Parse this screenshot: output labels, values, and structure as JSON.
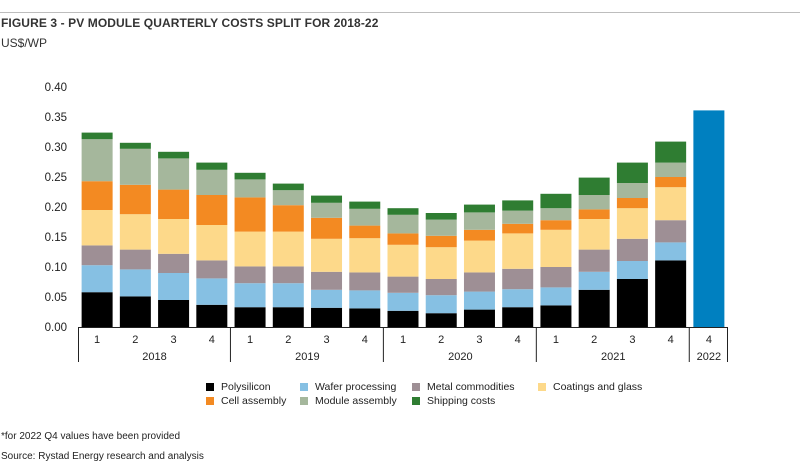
{
  "title": "FIGURE 3 - PV MODULE QUARTERLY COSTS SPLIT FOR 2018-22",
  "unit": "US$/WP",
  "note": "*for 2022 Q4 values have been provided",
  "source": "Source: Rystad Energy research and analysis",
  "chart_data": {
    "type": "bar",
    "stacked": true,
    "title": "FIGURE 3 - PV MODULE QUARTERLY COSTS SPLIT FOR 2018-22",
    "ylabel": "US$/WP",
    "ylim": [
      0,
      0.4
    ],
    "yticks": [
      "0.00",
      "0.05",
      "0.10",
      "0.15",
      "0.20",
      "0.25",
      "0.30",
      "0.35",
      "0.40"
    ],
    "quarters": [
      "1",
      "2",
      "3",
      "4",
      "1",
      "2",
      "3",
      "4",
      "1",
      "2",
      "3",
      "4",
      "1",
      "2",
      "3",
      "4",
      "4"
    ],
    "years": [
      {
        "label": "2018",
        "count": 4
      },
      {
        "label": "2019",
        "count": 4
      },
      {
        "label": "2020",
        "count": 4
      },
      {
        "label": "2021",
        "count": 4
      },
      {
        "label": "2022",
        "count": 1
      }
    ],
    "series": [
      {
        "name": "Polysilicon",
        "color": "#000000",
        "values": [
          0.058,
          0.051,
          0.045,
          0.037,
          0.033,
          0.033,
          0.032,
          0.031,
          0.027,
          0.023,
          0.029,
          0.033,
          0.036,
          0.062,
          0.08,
          0.111,
          null
        ]
      },
      {
        "name": "Wafer processing",
        "color": "#86c0e3",
        "values": [
          0.045,
          0.045,
          0.045,
          0.044,
          0.04,
          0.04,
          0.03,
          0.03,
          0.03,
          0.03,
          0.03,
          0.03,
          0.03,
          0.03,
          0.03,
          0.03,
          null
        ]
      },
      {
        "name": "Metal commodities",
        "color": "#9e8f95",
        "values": [
          0.033,
          0.033,
          0.032,
          0.03,
          0.028,
          0.028,
          0.03,
          0.03,
          0.027,
          0.027,
          0.032,
          0.034,
          0.034,
          0.037,
          0.037,
          0.037,
          null
        ]
      },
      {
        "name": "Coatings and glass",
        "color": "#fdd98a",
        "values": [
          0.059,
          0.059,
          0.058,
          0.059,
          0.058,
          0.058,
          0.055,
          0.057,
          0.053,
          0.053,
          0.053,
          0.059,
          0.062,
          0.051,
          0.051,
          0.055,
          null
        ]
      },
      {
        "name": "Cell assembly",
        "color": "#f38a22",
        "values": [
          0.048,
          0.049,
          0.049,
          0.05,
          0.057,
          0.044,
          0.035,
          0.021,
          0.019,
          0.019,
          0.018,
          0.016,
          0.016,
          0.016,
          0.017,
          0.017,
          null
        ]
      },
      {
        "name": "Module assembly",
        "color": "#a5b79c",
        "values": [
          0.07,
          0.06,
          0.052,
          0.042,
          0.03,
          0.025,
          0.025,
          0.028,
          0.031,
          0.027,
          0.029,
          0.022,
          0.02,
          0.024,
          0.025,
          0.024,
          null
        ]
      },
      {
        "name": "Shipping costs",
        "color": "#2f7d32",
        "values": [
          0.011,
          0.01,
          0.011,
          0.012,
          0.011,
          0.011,
          0.012,
          0.012,
          0.011,
          0.011,
          0.013,
          0.017,
          0.024,
          0.029,
          0.034,
          0.035,
          null
        ]
      }
    ],
    "totals_only": [
      {
        "index": 16,
        "total": 0.361,
        "color": "#0080c0"
      }
    ],
    "legend_position": "bottom"
  }
}
